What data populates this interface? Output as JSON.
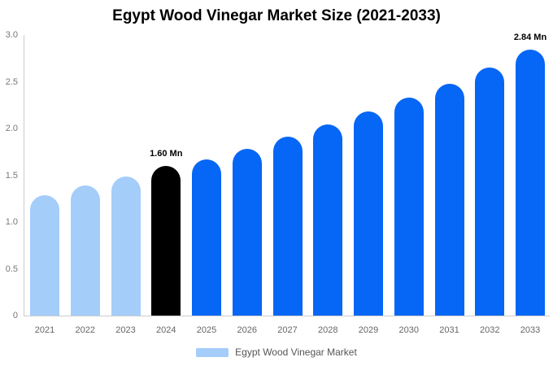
{
  "title": "Egypt Wood Vinegar Market Size (2021-2033)",
  "chart_data": {
    "type": "bar",
    "title": "Egypt Wood Vinegar Market Size (2021-2033)",
    "categories": [
      "2021",
      "2022",
      "2023",
      "2024",
      "2025",
      "2026",
      "2027",
      "2028",
      "2029",
      "2030",
      "2031",
      "2032",
      "2033"
    ],
    "values": [
      1.29,
      1.39,
      1.49,
      1.6,
      1.67,
      1.78,
      1.91,
      2.04,
      2.18,
      2.33,
      2.48,
      2.65,
      2.84
    ],
    "bar_colors": [
      "#A4CDFA",
      "#A4CDFA",
      "#A4CDFA",
      "#000000",
      "#0666F5",
      "#0666F5",
      "#0666F5",
      "#0666F5",
      "#0666F5",
      "#0666F5",
      "#0666F5",
      "#0666F5",
      "#0666F5"
    ],
    "data_labels": [
      {
        "category": "2024",
        "text": "1.60 Mn"
      },
      {
        "category": "2033",
        "text": "2.84 Mn"
      }
    ],
    "xlabel": "",
    "ylabel": "",
    "ylim": [
      0,
      3.0
    ],
    "ytick_values": [
      0,
      0.5,
      1.0,
      1.5,
      2.0,
      2.5,
      3.0
    ],
    "ytick_labels": [
      "0",
      "0.5",
      "1.0",
      "1.5",
      "2.0",
      "2.5",
      "3.0"
    ],
    "grid": false,
    "legend": {
      "position": "bottom",
      "label": "Egypt Wood Vinegar Market",
      "swatch_color": "#A4CDFA"
    }
  },
  "colors": {
    "background": "#ffffff",
    "axis_line": "#cccccc",
    "ytick_text": "#777777",
    "xtick_text": "#666666",
    "data_label_text": "#000000",
    "legend_text": "#555555"
  }
}
